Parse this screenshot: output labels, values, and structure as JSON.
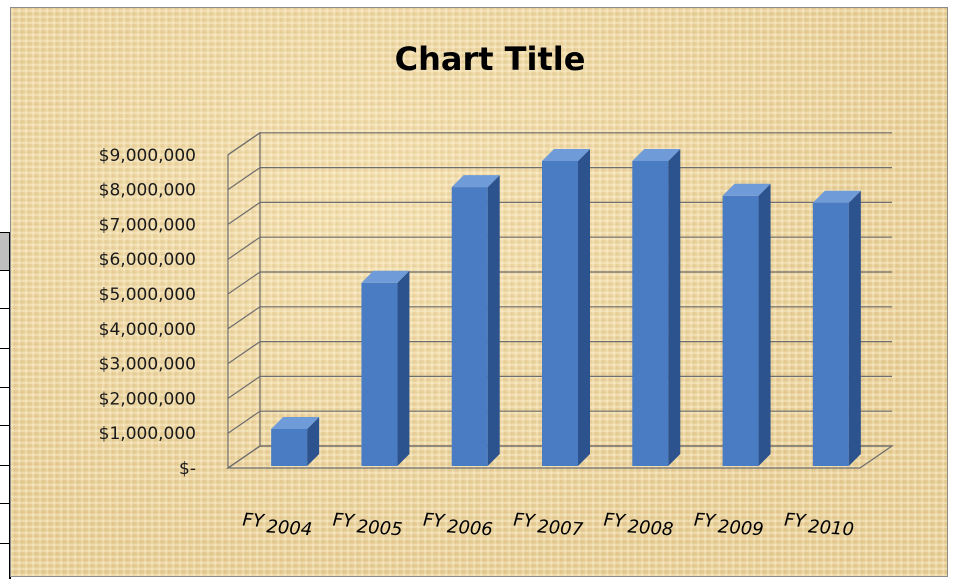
{
  "chart_data": {
    "type": "bar",
    "title": "Chart Title",
    "categories": [
      "FY 2004",
      "FY 2005",
      "FY 2006",
      "FY 2007",
      "FY 2008",
      "FY 2009",
      "FY 2010"
    ],
    "series": [
      {
        "values": [
          950000,
          5150000,
          7900000,
          8650000,
          8650000,
          7650000,
          7450000
        ]
      }
    ],
    "ytick_labels": [
      "$-",
      "$1,000,000",
      "$2,000,000",
      "$3,000,000",
      "$4,000,000",
      "$5,000,000",
      "$6,000,000",
      "$7,000,000",
      "$8,000,000",
      "$9,000,000"
    ],
    "ylim": [
      0,
      9000000
    ],
    "xlabel": "",
    "ylabel": "",
    "grid": true,
    "style": "3d-column",
    "bar_color": "#4a7cc4",
    "bar_side_color": "#2c538e",
    "bar_top_color": "#6f9bd8",
    "background": "parchment"
  }
}
